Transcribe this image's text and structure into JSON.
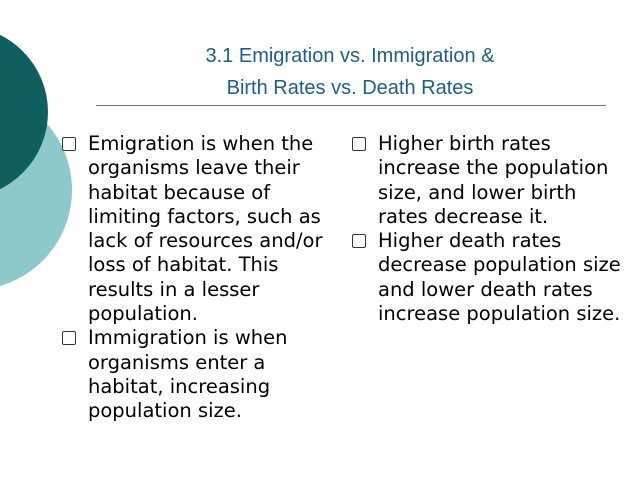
{
  "slide": {
    "title_line1": "3.1 Emigration vs. Immigration &",
    "title_line2": "Birth Rates vs. Death Rates",
    "colors": {
      "title": "#1d5f82",
      "circle_dark": "#0f5f5f",
      "circle_light": "#8cc8cc"
    },
    "left_bullets": [
      "Emigration is when the organisms leave their habitat because of limiting factors, such as lack of resources and/or loss of habitat. This results in a lesser population.",
      "Immigration is when organisms enter a habitat, increasing population size."
    ],
    "right_bullets": [
      "Higher birth rates increase the population size, and lower birth rates decrease it.",
      "Higher death rates decrease population size and lower death rates increase population size."
    ]
  }
}
